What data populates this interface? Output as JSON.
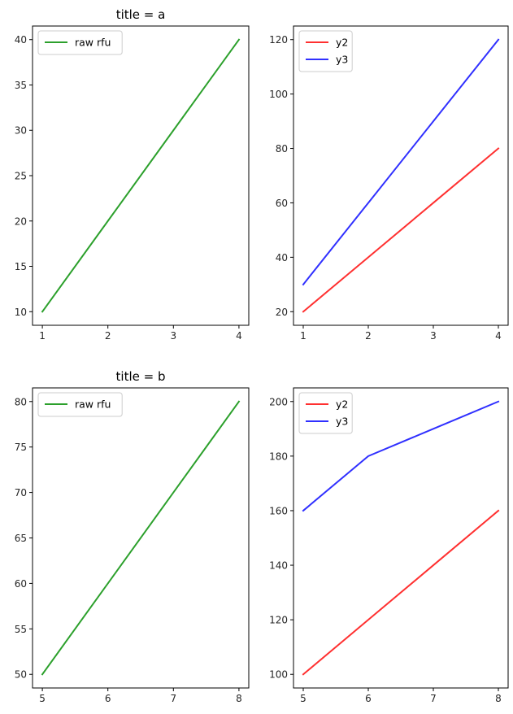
{
  "chart_data": [
    {
      "type": "line",
      "title": "title = a",
      "x": [
        1,
        2,
        3,
        4
      ],
      "xlim": [
        0.85,
        4.15
      ],
      "ylim": [
        8.5,
        41.5
      ],
      "xticks": [
        1,
        2,
        3,
        4
      ],
      "yticks": [
        10,
        15,
        20,
        25,
        30,
        35,
        40
      ],
      "legend_position": "upper-left",
      "series": [
        {
          "name": "raw rfu",
          "color": "#2ca02c",
          "values": [
            10,
            20,
            30,
            40
          ]
        }
      ]
    },
    {
      "type": "line",
      "title": "",
      "x": [
        1,
        2,
        3,
        4
      ],
      "xlim": [
        0.85,
        4.15
      ],
      "ylim": [
        15.0,
        125.0
      ],
      "xticks": [
        1,
        2,
        3,
        4
      ],
      "yticks": [
        20,
        40,
        60,
        80,
        100,
        120
      ],
      "legend_position": "upper-left",
      "series": [
        {
          "name": "y2",
          "color": "#ff3030",
          "values": [
            20,
            40,
            60,
            80
          ]
        },
        {
          "name": "y3",
          "color": "#3030ff",
          "values": [
            30,
            60,
            90,
            120
          ]
        }
      ]
    },
    {
      "type": "line",
      "title": "title = b",
      "x": [
        5,
        6,
        7,
        8
      ],
      "xlim": [
        4.85,
        8.15
      ],
      "ylim": [
        48.5,
        81.5
      ],
      "xticks": [
        5,
        6,
        7,
        8
      ],
      "yticks": [
        50,
        55,
        60,
        65,
        70,
        75,
        80
      ],
      "legend_position": "upper-left",
      "series": [
        {
          "name": "raw rfu",
          "color": "#2ca02c",
          "values": [
            50,
            60,
            70,
            80
          ]
        }
      ]
    },
    {
      "type": "line",
      "title": "",
      "x": [
        5,
        6,
        7,
        8
      ],
      "xlim": [
        4.85,
        8.15
      ],
      "ylim": [
        95.0,
        205.0
      ],
      "xticks": [
        5,
        6,
        7,
        8
      ],
      "yticks": [
        100,
        120,
        140,
        160,
        180,
        200
      ],
      "legend_position": "upper-left",
      "series": [
        {
          "name": "y2",
          "color": "#ff3030",
          "values": [
            100,
            120,
            140,
            160
          ]
        },
        {
          "name": "y3",
          "color": "#3030ff",
          "values": [
            160,
            180,
            190,
            200
          ]
        }
      ]
    }
  ]
}
